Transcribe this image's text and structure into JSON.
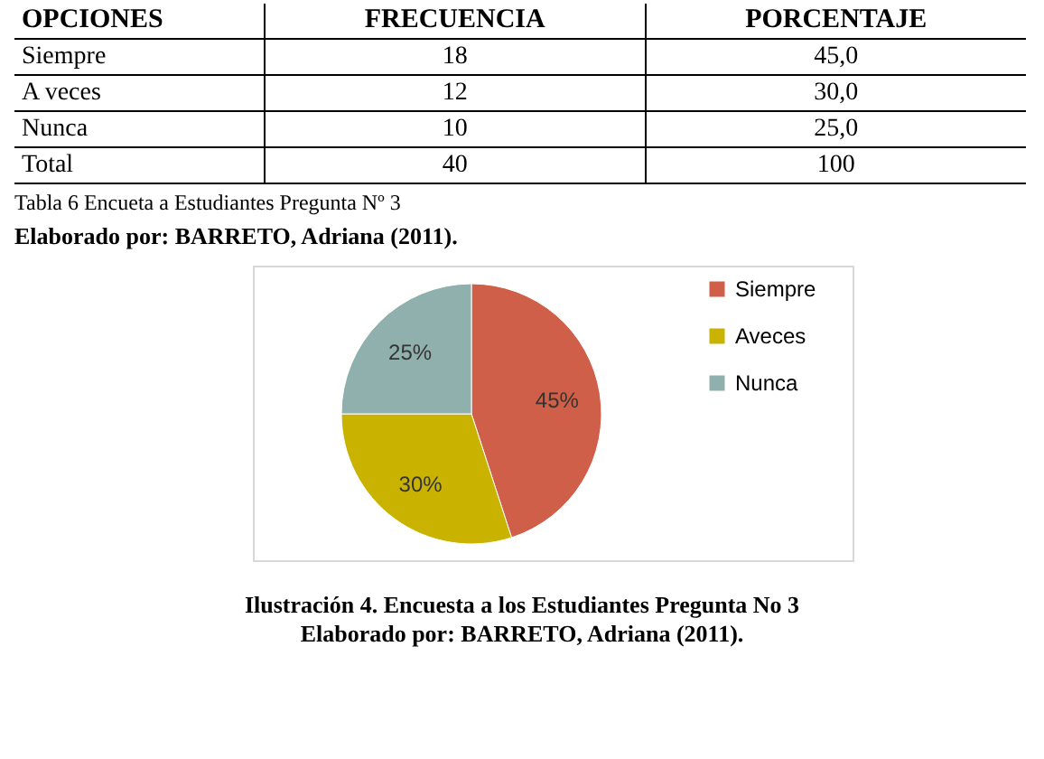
{
  "chart_data": [
    {
      "type": "other",
      "categories": [
        "OPCIONES",
        "FRECUENCIA",
        "PORCENTAJE"
      ],
      "cell_labels": [
        [
          "Siempre",
          "18",
          "45,0"
        ],
        [
          "A veces",
          "12",
          "30,0"
        ],
        [
          "Nunca",
          "10",
          "25,0"
        ],
        [
          "Total",
          "40",
          "100"
        ]
      ],
      "annotations": [
        "Tabla 6  Encueta a Estudiantes Pregunta Nº 3",
        "Elaborado por: BARRETO, Adriana (2011)."
      ]
    },
    {
      "type": "pie",
      "title": "Ilustración 4. Encuesta a los Estudiantes  Pregunta No 3",
      "categories": [
        "Siempre",
        "Aveces",
        "Nunca"
      ],
      "values": [
        45,
        30,
        25
      ],
      "colors": [
        "#cf5f48",
        "#c9b300",
        "#8fb0ac"
      ],
      "value_labels": [
        "45%",
        "30%",
        "25%"
      ],
      "legend": "right",
      "annotations": [
        "Elaborado por: BARRETO, Adriana (2011)."
      ]
    }
  ]
}
